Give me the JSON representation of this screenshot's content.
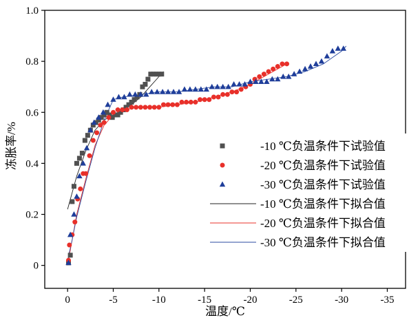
{
  "chart_data": {
    "type": "scatter",
    "title": "",
    "xlabel": "温度/℃",
    "ylabel": "冻胀率/%",
    "xlim": [
      2.5,
      -37
    ],
    "ylim": [
      -0.09,
      1.0
    ],
    "x_ticks": [
      0,
      -5,
      -10,
      -15,
      -20,
      -25,
      -30,
      -35
    ],
    "y_ticks": [
      0,
      0.2,
      0.4,
      0.6,
      0.8,
      1.0
    ],
    "x_tick_labels": [
      "0",
      "-5",
      "-10",
      "-15",
      "-20",
      "-25",
      "-30",
      "-35"
    ],
    "y_tick_labels": [
      "0",
      "0.2",
      "0.4",
      "0.6",
      "0.8",
      "1.0"
    ],
    "grid": false,
    "legend_position": "right",
    "colors": {
      "minus10": "#505050",
      "minus20": "#e8302a",
      "minus30": "#1f3e9a",
      "fit10": "#222222",
      "fit20": "#e8302a",
      "fit30": "#2a4aa0"
    },
    "series": [
      {
        "name": "-10 ℃负温条件下试验值",
        "marker": "square",
        "color_key": "minus10",
        "x": [
          -0.1,
          -0.3,
          -0.5,
          -0.7,
          -1.0,
          -1.3,
          -1.6,
          -1.9,
          -2.2,
          -2.5,
          -2.8,
          -3.1,
          -3.4,
          -3.7,
          -4.0,
          -4.3,
          -4.6,
          -4.9,
          -5.2,
          -5.5,
          -5.8,
          -6.1,
          -6.4,
          -6.7,
          -7.0,
          -7.3,
          -7.6,
          -7.9,
          -8.2,
          -8.5,
          -8.8,
          -9.1,
          -9.4,
          -9.7,
          -10.0,
          -10.3
        ],
        "y": [
          0.01,
          0.04,
          0.25,
          0.31,
          0.4,
          0.42,
          0.44,
          0.49,
          0.51,
          0.53,
          0.55,
          0.56,
          0.57,
          0.58,
          0.59,
          0.6,
          0.59,
          0.58,
          0.59,
          0.59,
          0.6,
          0.61,
          0.62,
          0.63,
          0.64,
          0.65,
          0.66,
          0.67,
          0.7,
          0.71,
          0.73,
          0.75,
          0.75,
          0.75,
          0.75,
          0.75
        ]
      },
      {
        "name": "-20 ℃负温条件下试验值",
        "marker": "circle",
        "color_key": "minus20",
        "x": [
          -0.1,
          -0.2,
          -0.5,
          -0.8,
          -1.1,
          -1.4,
          -1.7,
          -2.0,
          -2.4,
          -2.8,
          -3.2,
          -3.6,
          -4.0,
          -4.5,
          -5.0,
          -5.5,
          -6.0,
          -6.5,
          -7.0,
          -7.5,
          -8.0,
          -8.5,
          -9.0,
          -9.5,
          -10.0,
          -10.5,
          -11.0,
          -11.5,
          -12.0,
          -12.5,
          -13.0,
          -13.5,
          -14.0,
          -14.5,
          -15.0,
          -15.5,
          -16.0,
          -16.5,
          -17.0,
          -17.5,
          -18.0,
          -18.5,
          -19.0,
          -19.5,
          -20.0,
          -20.5,
          -21.0,
          -21.5,
          -22.0,
          -22.5,
          -23.0,
          -23.5,
          -24.0
        ],
        "y": [
          0.02,
          0.08,
          0.12,
          0.17,
          0.26,
          0.3,
          0.36,
          0.36,
          0.43,
          0.49,
          0.52,
          0.55,
          0.56,
          0.58,
          0.6,
          0.61,
          0.61,
          0.61,
          0.62,
          0.62,
          0.62,
          0.62,
          0.62,
          0.62,
          0.62,
          0.63,
          0.63,
          0.63,
          0.63,
          0.64,
          0.64,
          0.64,
          0.64,
          0.65,
          0.65,
          0.65,
          0.66,
          0.66,
          0.67,
          0.67,
          0.68,
          0.68,
          0.69,
          0.7,
          0.71,
          0.73,
          0.74,
          0.75,
          0.76,
          0.77,
          0.78,
          0.79,
          0.79
        ]
      },
      {
        "name": "-30 ℃负温条件下试验值",
        "marker": "triangle",
        "color_key": "minus30",
        "x": [
          -0.1,
          -0.3,
          -0.7,
          -1.0,
          -1.3,
          -1.7,
          -2.1,
          -2.5,
          -2.9,
          -3.4,
          -3.9,
          -4.4,
          -5.0,
          -5.6,
          -6.2,
          -6.8,
          -7.4,
          -8.0,
          -8.6,
          -9.2,
          -9.8,
          -10.4,
          -11.0,
          -11.6,
          -12.2,
          -12.8,
          -13.4,
          -14.0,
          -14.6,
          -15.2,
          -15.8,
          -16.4,
          -17.0,
          -17.6,
          -18.2,
          -18.8,
          -19.4,
          -20.0,
          -20.6,
          -21.2,
          -21.8,
          -22.4,
          -23.0,
          -23.6,
          -24.2,
          -24.8,
          -25.4,
          -26.0,
          -26.6,
          -27.2,
          -27.8,
          -28.4,
          -29.0,
          -29.6,
          -30.2
        ],
        "y": [
          0.01,
          0.12,
          0.2,
          0.27,
          0.35,
          0.4,
          0.46,
          0.53,
          0.56,
          0.58,
          0.6,
          0.63,
          0.65,
          0.66,
          0.66,
          0.67,
          0.67,
          0.67,
          0.67,
          0.68,
          0.68,
          0.68,
          0.68,
          0.68,
          0.68,
          0.69,
          0.69,
          0.69,
          0.69,
          0.69,
          0.7,
          0.7,
          0.7,
          0.7,
          0.71,
          0.71,
          0.71,
          0.72,
          0.72,
          0.72,
          0.72,
          0.73,
          0.73,
          0.74,
          0.74,
          0.75,
          0.76,
          0.77,
          0.78,
          0.79,
          0.8,
          0.82,
          0.84,
          0.85,
          0.85
        ]
      },
      {
        "name": "-10 ℃负温条件下拟合值",
        "marker": "line",
        "color_key": "fit10",
        "x": [
          0,
          -1,
          -2,
          -3,
          -4,
          -5,
          -6,
          -7,
          -8,
          -9,
          -10,
          -10.5
        ],
        "y": [
          0.22,
          0.35,
          0.45,
          0.53,
          0.57,
          0.59,
          0.61,
          0.63,
          0.66,
          0.7,
          0.74,
          0.76
        ]
      },
      {
        "name": "-20 ℃负温条件下拟合值",
        "marker": "line",
        "color_key": "fit20",
        "x": [
          0,
          -0.5,
          -1,
          -2,
          -3,
          -4,
          -5,
          -6,
          -8,
          -10,
          -12,
          -14,
          -16,
          -18,
          -20,
          -22,
          -24
        ],
        "y": [
          0.0,
          0.1,
          0.2,
          0.34,
          0.47,
          0.55,
          0.59,
          0.61,
          0.62,
          0.62,
          0.63,
          0.64,
          0.66,
          0.68,
          0.71,
          0.75,
          0.79
        ]
      },
      {
        "name": "-30 ℃负温条件下拟合值",
        "marker": "line",
        "color_key": "fit30",
        "x": [
          0,
          -0.5,
          -1,
          -2,
          -3,
          -4,
          -5,
          -6,
          -8,
          -10,
          -12,
          -14,
          -16,
          -18,
          -20,
          -22,
          -24,
          -26,
          -28,
          -30,
          -30.5
        ],
        "y": [
          0.02,
          0.1,
          0.19,
          0.33,
          0.46,
          0.57,
          0.65,
          0.66,
          0.67,
          0.68,
          0.68,
          0.69,
          0.7,
          0.7,
          0.72,
          0.73,
          0.74,
          0.76,
          0.79,
          0.84,
          0.86
        ]
      }
    ]
  }
}
